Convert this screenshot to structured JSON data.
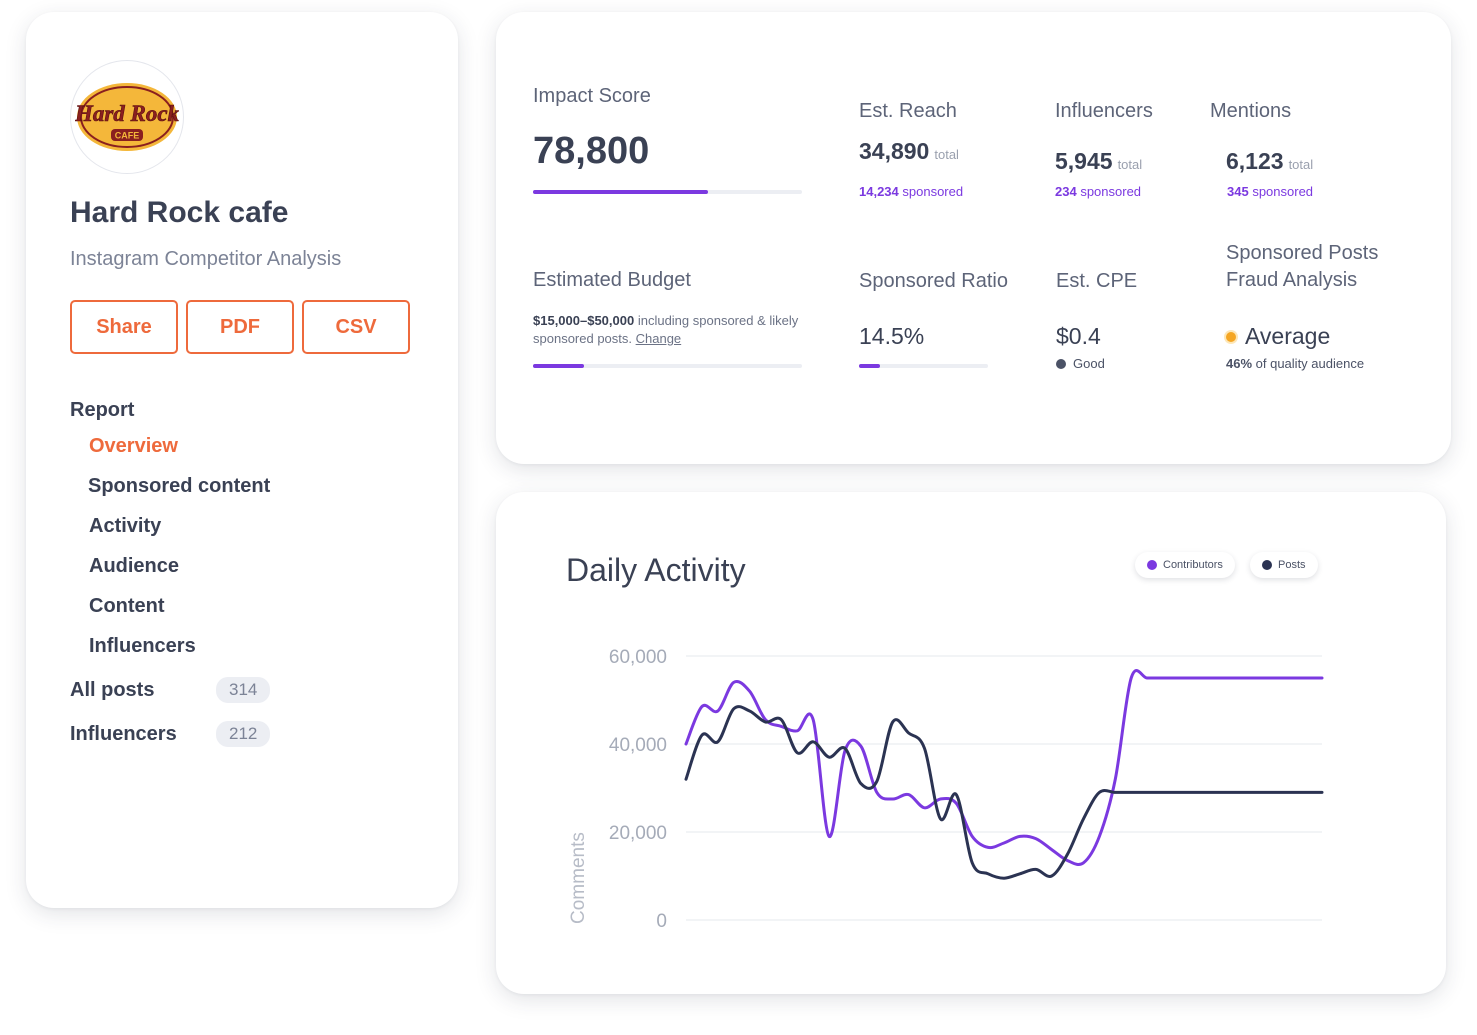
{
  "brand": {
    "logo_text": "Hard Rock",
    "logo_sub": "CAFE",
    "name": "Hard Rock cafe",
    "subtitle": "Instagram Competitor Analysis"
  },
  "actions": {
    "share": "Share",
    "pdf": "PDF",
    "csv": "CSV"
  },
  "nav": {
    "report_label": "Report",
    "items": [
      {
        "label": "Overview",
        "active": true
      },
      {
        "label": "Sponsored content"
      },
      {
        "label": "Activity"
      },
      {
        "label": "Audience"
      },
      {
        "label": "Content"
      },
      {
        "label": "Influencers"
      }
    ],
    "all_posts": {
      "label": "All posts",
      "count": "314"
    },
    "influencers": {
      "label": "Influencers",
      "count": "212"
    }
  },
  "stats": {
    "impact": {
      "label": "Impact Score",
      "value": "78,800",
      "progress": 0.65
    },
    "reach": {
      "label": "Est. Reach",
      "value": "34,890",
      "total": "total",
      "sponsored_num": "14,234",
      "sponsored_word": "sponsored"
    },
    "influencers": {
      "label": "Influencers",
      "value": "5,945",
      "total": "total",
      "sponsored_num": "234",
      "sponsored_word": "sponsored"
    },
    "mentions": {
      "label": "Mentions",
      "value": "6,123",
      "total": "total",
      "sponsored_num": "345",
      "sponsored_word": "sponsored"
    },
    "budget": {
      "label": "Estimated Budget",
      "range": "$15,000–$50,000",
      "text": " including sponsored & likely sponsored posts. ",
      "link": "Change",
      "progress": 0.19
    },
    "ratio": {
      "label": "Sponsored Ratio",
      "value": "14.5%",
      "progress": 0.16
    },
    "cpe": {
      "label": "Est. CPE",
      "value": "$0.4",
      "rating": "Good"
    },
    "fraud": {
      "label_line1": "Sponsored Posts",
      "label_line2": "Fraud Analysis",
      "value": "Average",
      "pct": "46%",
      "desc": " of quality audience"
    }
  },
  "colors": {
    "accent": "#ee6a3c",
    "purple": "#7b39e0",
    "navy": "#2b3352",
    "fraud_dot": "#f5a623",
    "good_dot": "#4b5266"
  },
  "chart_data": {
    "type": "line",
    "title": "Daily Activity",
    "ylabel": "Comments",
    "xlabel": "",
    "ylim": [
      0,
      60000
    ],
    "yticks": [
      0,
      20000,
      40000,
      60000
    ],
    "ytick_labels": [
      "0",
      "20,000",
      "40,000",
      "60,000"
    ],
    "grid": true,
    "legend": "top-right",
    "x": [
      0,
      0.4,
      0.8,
      1.2,
      1.6,
      2.0,
      2.4,
      2.8,
      3.2,
      3.6,
      4.0,
      4.4,
      4.8,
      5.2,
      5.6,
      6.0,
      6.4,
      6.8,
      7.2,
      7.6,
      8.0,
      8.4,
      8.8,
      9.2,
      9.6,
      10.0,
      10.4,
      10.8,
      11.2,
      11.6,
      12.0,
      12.4,
      12.8,
      13.2,
      13.6,
      14.0,
      14.4,
      14.8,
      15.2,
      15.6,
      16.0
    ],
    "series": [
      {
        "name": "Contributors",
        "color": "#7b39e0",
        "values": [
          40000,
          48500,
          47500,
          54000,
          52000,
          45500,
          44000,
          43000,
          45500,
          19000,
          38500,
          39500,
          29000,
          27500,
          28500,
          25500,
          27500,
          26500,
          19000,
          16500,
          17500,
          19000,
          18500,
          16000,
          13500,
          13000,
          19000,
          32000,
          55000,
          55000,
          55000,
          55000,
          55000,
          55000,
          55000,
          55000,
          55000,
          55000,
          55000,
          55000,
          55000
        ]
      },
      {
        "name": "Posts",
        "color": "#2b3352",
        "values": [
          32000,
          42000,
          40500,
          48000,
          47500,
          45000,
          45500,
          38000,
          40500,
          37000,
          39000,
          31000,
          31500,
          45000,
          42500,
          39000,
          23000,
          28500,
          13000,
          10500,
          9500,
          10500,
          11500,
          10000,
          15000,
          23000,
          29000,
          29000,
          29000,
          29000,
          29000,
          29000,
          29000,
          29000,
          29000,
          29000,
          29000,
          29000,
          29000,
          29000,
          29000
        ]
      }
    ]
  }
}
